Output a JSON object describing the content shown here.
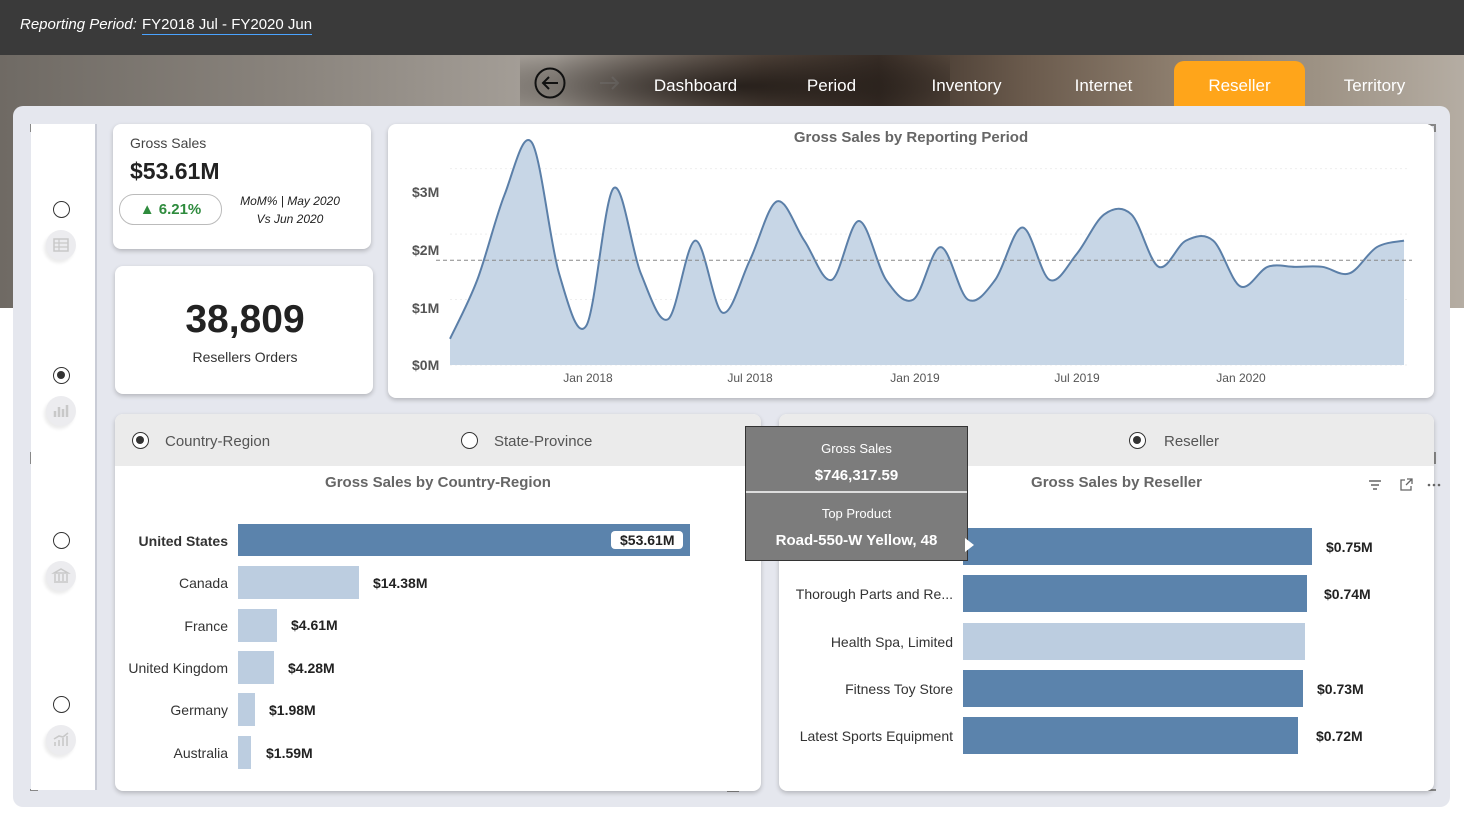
{
  "header": {
    "period_label": "Reporting Period:",
    "period_value": "FY2018  Jul - FY2020  Jun"
  },
  "nav": {
    "back_icon": "circle-arrow-left-icon",
    "forward_icon": "arrow-right-icon",
    "tabs": [
      {
        "label": "Dashboard"
      },
      {
        "label": "Period"
      },
      {
        "label": "Inventory"
      },
      {
        "label": "Internet"
      },
      {
        "label": "Reseller",
        "active": true
      },
      {
        "label": "Territory"
      }
    ],
    "active_color": "#ffa51a"
  },
  "rail": {
    "options": [
      {
        "selected": false,
        "icon": "table-icon"
      },
      {
        "selected": true,
        "icon": "bar-chart-icon"
      },
      {
        "selected": false,
        "icon": "building-icon"
      },
      {
        "selected": false,
        "icon": "trend-chart-icon"
      }
    ]
  },
  "kpi_sales": {
    "title": "Gross Sales",
    "value": "$53.61M",
    "change": "▲ 6.21%",
    "mom_line1": "MoM% | May 2020",
    "mom_line2": "Vs Jun 2020",
    "change_color": "#2e8b3d"
  },
  "kpi_orders": {
    "value": "38,809",
    "label": "Resellers Orders"
  },
  "line_chart": {
    "title": "Gross Sales by Reporting Period",
    "y_ticks": [
      "$3M",
      "$2M",
      "$1M",
      "$0M"
    ],
    "x_ticks": [
      "Jan 2018",
      "Jul 2018",
      "Jan 2019",
      "Jul 2019",
      "Jan 2020"
    ],
    "line_color": "#5b7fa8",
    "fill_color": "#c7d6e6"
  },
  "country_panel": {
    "option_country": "Country-Region",
    "option_state": "State-Province",
    "title": "Gross Sales by Country-Region",
    "rows": [
      {
        "label": "United States",
        "value": "$53.61M"
      },
      {
        "label": "Canada",
        "value": "$14.38M"
      },
      {
        "label": "France",
        "value": "$4.61M"
      },
      {
        "label": "United Kingdom",
        "value": "$4.28M"
      },
      {
        "label": "Germany",
        "value": "$1.98M"
      },
      {
        "label": "Australia",
        "value": "$1.59M"
      }
    ]
  },
  "reseller_panel": {
    "option_reseller": "Reseller",
    "title": "Gross Sales by Reseller",
    "filter_icon": "filter-icon",
    "focus_icon": "focus-mode-icon",
    "more_icon": "more-options-icon",
    "rows": [
      {
        "label": "",
        "value": "$0.75M"
      },
      {
        "label": "Thorough Parts and Re...",
        "value": "$0.74M"
      },
      {
        "label": "Health Spa, Limited",
        "value": ""
      },
      {
        "label": "Fitness Toy Store",
        "value": "$0.73M"
      },
      {
        "label": "Latest Sports Equipment",
        "value": "$0.72M"
      }
    ]
  },
  "tooltip": {
    "k1": "Gross Sales",
    "v1": "$746,317.59",
    "k2": "Top Product",
    "v2": "Road-550-W Yellow, 48"
  },
  "chart_data": [
    {
      "type": "area",
      "title": "Gross Sales by Reporting Period",
      "xlabel": "",
      "ylabel": "",
      "ylim": [
        0,
        3.3
      ],
      "y_unit": "$M",
      "x_range": [
        "2017-07",
        "2020-06"
      ],
      "x": [
        "2017-07",
        "2017-08",
        "2017-09",
        "2017-10",
        "2017-11",
        "2017-12",
        "2018-01",
        "2018-02",
        "2018-03",
        "2018-04",
        "2018-05",
        "2018-06",
        "2018-07",
        "2018-08",
        "2018-09",
        "2018-10",
        "2018-11",
        "2018-12",
        "2019-01",
        "2019-02",
        "2019-03",
        "2019-04",
        "2019-05",
        "2019-06",
        "2019-07",
        "2019-08",
        "2019-09",
        "2019-10",
        "2019-11",
        "2019-12",
        "2020-01",
        "2020-02",
        "2020-03",
        "2020-04",
        "2020-05",
        "2020-06"
      ],
      "values": [
        0.4,
        1.3,
        2.6,
        3.4,
        1.4,
        0.6,
        2.7,
        1.4,
        0.7,
        1.9,
        0.8,
        1.6,
        2.5,
        1.9,
        1.3,
        2.2,
        1.3,
        1.0,
        1.8,
        1.0,
        1.3,
        2.1,
        1.3,
        1.7,
        2.3,
        2.3,
        1.5,
        1.9,
        1.9,
        1.2,
        1.5,
        1.5,
        1.5,
        1.4,
        1.8,
        1.9
      ],
      "reference_line": 1.6,
      "grid": true
    },
    {
      "type": "bar",
      "orientation": "horizontal",
      "title": "Gross Sales by Country-Region",
      "categories": [
        "United States",
        "Canada",
        "France",
        "United Kingdom",
        "Germany",
        "Australia"
      ],
      "values": [
        53.61,
        14.38,
        4.61,
        4.28,
        1.98,
        1.59
      ],
      "unit": "$M"
    },
    {
      "type": "bar",
      "orientation": "horizontal",
      "title": "Gross Sales by Reseller",
      "categories": [
        "",
        "Thorough Parts and Re...",
        "Health Spa, Limited",
        "Fitness Toy Store",
        "Latest Sports Equipment"
      ],
      "values": [
        0.75,
        0.74,
        0.735,
        0.73,
        0.72
      ],
      "unit": "$M"
    }
  ]
}
